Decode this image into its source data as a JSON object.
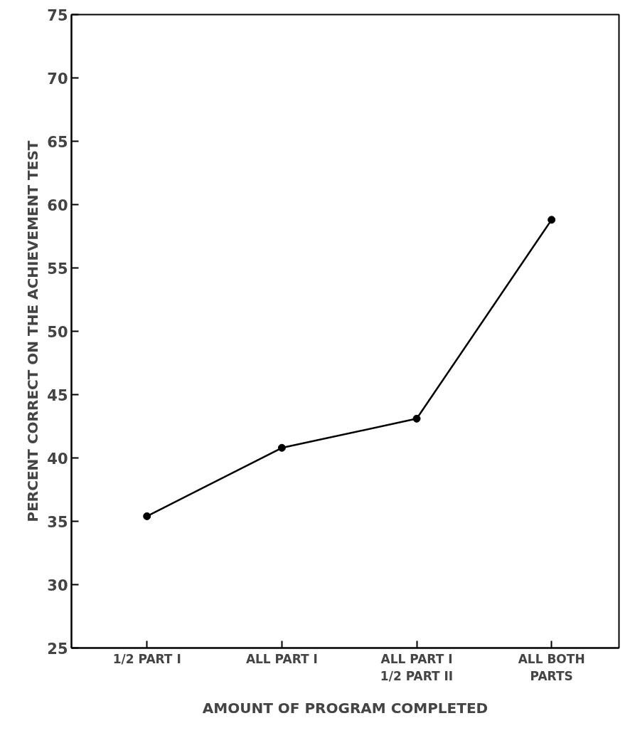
{
  "chart_data": {
    "type": "line",
    "xlabel": "AMOUNT OF PROGRAM COMPLETED",
    "ylabel": "PERCENT CORRECT ON THE ACHIEVEMENT TEST",
    "categories": [
      "1/2 PART I",
      "ALL PART I",
      "ALL PART I\n1/2 PART II",
      "ALL BOTH\nPARTS"
    ],
    "series": [
      {
        "color": "#000000",
        "values": [
          35.4,
          40.8,
          43.1,
          58.8
        ]
      }
    ],
    "ylim": [
      25,
      75
    ],
    "yticks": [
      25,
      30,
      35,
      40,
      45,
      50,
      55,
      60,
      65,
      70,
      75
    ],
    "grid": false,
    "marker": "circle",
    "line_style": "solid"
  }
}
